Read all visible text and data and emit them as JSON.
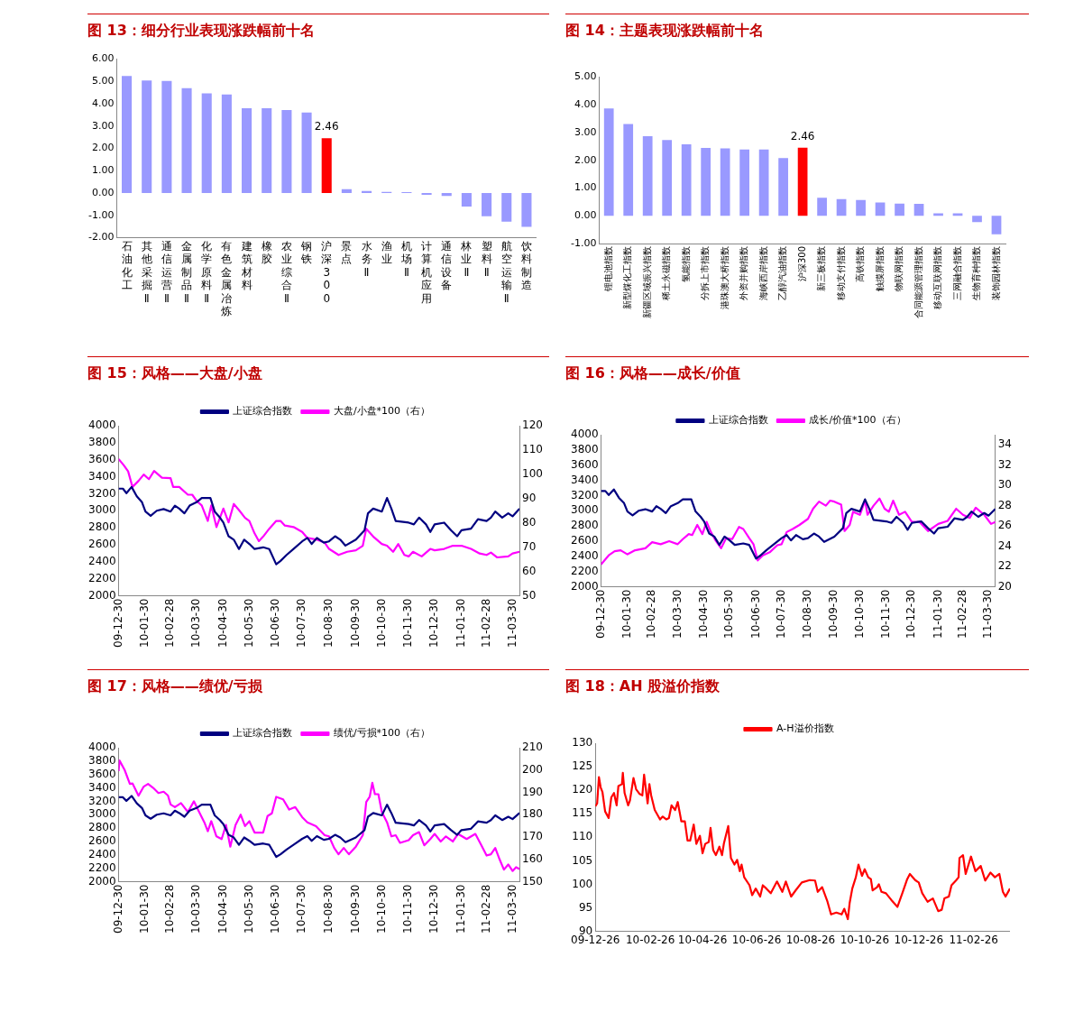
{
  "chart_data": [
    {
      "type": "bar",
      "title": "图 13：细分行业表现涨跌幅前十名",
      "categories": [
        "石油化工",
        "其他采掘Ⅱ",
        "通信运营Ⅱ",
        "金属制品Ⅱ",
        "化学原料Ⅱ",
        "有色金属冶炼",
        "建筑材料",
        "橡胶",
        "农业综合Ⅱ",
        "钢铁",
        "沪深300",
        "景点",
        "水务Ⅱ",
        "渔业",
        "机场Ⅱ",
        "计算机应用",
        "通信设备",
        "林业Ⅱ",
        "塑料Ⅱ",
        "航空运输Ⅱ",
        "饮料制造"
      ],
      "values": [
        5.25,
        5.04,
        5.02,
        4.7,
        4.47,
        4.42,
        3.8,
        3.8,
        3.72,
        3.61,
        2.46,
        0.18,
        0.1,
        0.05,
        0.04,
        -0.08,
        -0.13,
        -0.6,
        -1.04,
        -1.28,
        -1.51
      ],
      "colors": [
        "#9999ff",
        "#9999ff",
        "#9999ff",
        "#9999ff",
        "#9999ff",
        "#9999ff",
        "#9999ff",
        "#9999ff",
        "#9999ff",
        "#9999ff",
        "#ff0000",
        "#9999ff",
        "#9999ff",
        "#9999ff",
        "#9999ff",
        "#9999ff",
        "#9999ff",
        "#9999ff",
        "#9999ff",
        "#9999ff",
        "#9999ff"
      ],
      "value_labels": [
        null,
        null,
        null,
        null,
        null,
        null,
        null,
        null,
        null,
        null,
        "2.46",
        null,
        null,
        null,
        null,
        null,
        null,
        null,
        null,
        null,
        null
      ],
      "ylim": [
        -2,
        6
      ],
      "yticks": [
        {
          "value": -2,
          "label": "-2.00"
        },
        {
          "value": -1,
          "label": "-1.00"
        },
        {
          "value": 0,
          "label": "0.00"
        },
        {
          "value": 1,
          "label": "1.00"
        },
        {
          "value": 2,
          "label": "2.00"
        },
        {
          "value": 3,
          "label": "3.00"
        },
        {
          "value": 4,
          "label": "4.00"
        },
        {
          "value": 5,
          "label": "5.00"
        },
        {
          "value": 6,
          "label": "6.00"
        }
      ]
    },
    {
      "type": "bar",
      "title": "图 14：主题表现涨跌幅前十名",
      "categories": [
        "锂电池指数",
        "新型煤化工指数",
        "新疆区域振兴指数",
        "稀土永磁指数",
        "氢能指数",
        "分拆上市指数",
        "港珠澳大桥指数",
        "外资并购指数",
        "海峡西岸指数",
        "乙醇汽油指数",
        "沪深300",
        "新三板指数",
        "移动支付指数",
        "高铁指数",
        "触摸屏指数",
        "物联网指数",
        "合同能源管理指数",
        "移动互联网指数",
        "三网融合指数",
        "生物育种指数",
        "装饰园林指数"
      ],
      "values": [
        3.87,
        3.31,
        2.87,
        2.73,
        2.58,
        2.45,
        2.43,
        2.39,
        2.39,
        2.08,
        2.46,
        0.65,
        0.6,
        0.57,
        0.48,
        0.44,
        0.43,
        0.09,
        0.09,
        -0.23,
        -0.67
      ],
      "colors": [
        "#9999ff",
        "#9999ff",
        "#9999ff",
        "#9999ff",
        "#9999ff",
        "#9999ff",
        "#9999ff",
        "#9999ff",
        "#9999ff",
        "#9999ff",
        "#ff0000",
        "#9999ff",
        "#9999ff",
        "#9999ff",
        "#9999ff",
        "#9999ff",
        "#9999ff",
        "#9999ff",
        "#9999ff",
        "#9999ff",
        "#9999ff"
      ],
      "value_labels": [
        null,
        null,
        null,
        null,
        null,
        null,
        null,
        null,
        null,
        null,
        "2.46",
        null,
        null,
        null,
        null,
        null,
        null,
        null,
        null,
        null,
        null
      ],
      "ylim": [
        -1,
        5
      ],
      "yticks": [
        {
          "value": -1,
          "label": "-1.00"
        },
        {
          "value": 0,
          "label": "0.00"
        },
        {
          "value": 1,
          "label": "1.00"
        },
        {
          "value": 2,
          "label": "2.00"
        },
        {
          "value": 3,
          "label": "3.00"
        },
        {
          "value": 4,
          "label": "4.00"
        },
        {
          "value": 5,
          "label": "5.00"
        }
      ]
    },
    {
      "type": "line",
      "title": "图 15：风格——大盘/小盘",
      "legend": "top",
      "xlim": [
        "2009-12-30",
        "2011-04-07"
      ],
      "xticks": [
        {
          "value": "2009-12-30",
          "label": "09-12-30"
        },
        {
          "value": "2010-01-30",
          "label": "10-01-30"
        },
        {
          "value": "2010-02-28",
          "label": "10-02-28"
        },
        {
          "value": "2010-03-30",
          "label": "10-03-30"
        },
        {
          "value": "2010-04-30",
          "label": "10-04-30"
        },
        {
          "value": "2010-05-30",
          "label": "10-05-30"
        },
        {
          "value": "2010-06-30",
          "label": "10-06-30"
        },
        {
          "value": "2010-07-30",
          "label": "10-07-30"
        },
        {
          "value": "2010-08-30",
          "label": "10-08-30"
        },
        {
          "value": "2010-09-30",
          "label": "10-09-30"
        },
        {
          "value": "2010-10-30",
          "label": "10-10-30"
        },
        {
          "value": "2010-11-30",
          "label": "10-11-30"
        },
        {
          "value": "2010-12-30",
          "label": "10-12-30"
        },
        {
          "value": "2011-01-30",
          "label": "11-01-30"
        },
        {
          "value": "2011-02-28",
          "label": "11-02-28"
        },
        {
          "value": "2011-03-30",
          "label": "11-03-30"
        }
      ],
      "ylim": [
        2000,
        4000
      ],
      "yticks": [
        2000,
        2200,
        2400,
        2600,
        2800,
        3000,
        3200,
        3400,
        3600,
        3800,
        4000
      ],
      "y2lim": [
        50,
        120
      ],
      "y2ticks": [
        50,
        60,
        70,
        80,
        90,
        100,
        110,
        120
      ],
      "series": [
        {
          "name": "上证综合指数",
          "color": "#000080",
          "x": [
            "2009-12-30",
            "2010-01-04",
            "2010-01-08",
            "2010-01-14",
            "2010-01-20",
            "2010-01-26",
            "2010-01-30",
            "2010-02-05",
            "2010-02-12",
            "2010-02-20",
            "2010-02-28",
            "2010-03-05",
            "2010-03-10",
            "2010-03-16",
            "2010-03-22",
            "2010-03-30",
            "2010-04-05",
            "2010-04-15",
            "2010-04-20",
            "2010-04-26",
            "2010-04-30",
            "2010-05-06",
            "2010-05-12",
            "2010-05-18",
            "2010-05-24",
            "2010-05-30",
            "2010-06-05",
            "2010-06-15",
            "2010-06-22",
            "2010-06-30",
            "2010-07-05",
            "2010-07-12",
            "2010-07-20",
            "2010-07-30",
            "2010-08-05",
            "2010-08-10",
            "2010-08-16",
            "2010-08-24",
            "2010-08-30",
            "2010-09-06",
            "2010-09-12",
            "2010-09-18",
            "2010-09-30",
            "2010-10-10",
            "2010-10-14",
            "2010-10-20",
            "2010-10-30",
            "2010-11-05",
            "2010-11-10",
            "2010-11-15",
            "2010-11-30",
            "2010-12-06",
            "2010-12-12",
            "2010-12-20",
            "2010-12-25",
            "2010-12-30",
            "2011-01-10",
            "2011-01-18",
            "2011-01-25",
            "2011-01-30",
            "2011-02-10",
            "2011-02-18",
            "2011-02-28",
            "2011-03-05",
            "2011-03-10",
            "2011-03-18",
            "2011-03-25",
            "2011-03-30",
            "2011-04-07"
          ],
          "values": [
            3260,
            3260,
            3207,
            3280,
            3170,
            3100,
            2990,
            2940,
            3000,
            3020,
            2990,
            3060,
            3025,
            2970,
            3060,
            3100,
            3150,
            3150,
            2990,
            2920,
            2860,
            2700,
            2660,
            2550,
            2660,
            2610,
            2550,
            2570,
            2550,
            2370,
            2410,
            2480,
            2550,
            2640,
            2680,
            2610,
            2680,
            2625,
            2640,
            2700,
            2660,
            2590,
            2660,
            2770,
            2970,
            3025,
            2990,
            3150,
            3025,
            2880,
            2860,
            2840,
            2920,
            2840,
            2750,
            2840,
            2860,
            2770,
            2700,
            2770,
            2790,
            2900,
            2880,
            2920,
            2990,
            2920,
            2970,
            2935,
            3025
          ]
        },
        {
          "name": "大盘/小盘*100（右）",
          "color": "#ff00ff",
          "axis": "y2",
          "x": [
            "2009-12-30",
            "2010-01-05",
            "2010-01-10",
            "2010-01-15",
            "2010-01-22",
            "2010-01-28",
            "2010-02-03",
            "2010-02-09",
            "2010-02-18",
            "2010-02-28",
            "2010-03-03",
            "2010-03-10",
            "2010-03-20",
            "2010-03-25",
            "2010-03-30",
            "2010-04-05",
            "2010-04-12",
            "2010-04-16",
            "2010-04-22",
            "2010-04-30",
            "2010-05-06",
            "2010-05-12",
            "2010-05-18",
            "2010-05-25",
            "2010-05-30",
            "2010-06-05",
            "2010-06-10",
            "2010-06-15",
            "2010-06-22",
            "2010-06-30",
            "2010-07-05",
            "2010-07-10",
            "2010-07-20",
            "2010-07-30",
            "2010-08-05",
            "2010-08-15",
            "2010-08-25",
            "2010-08-30",
            "2010-09-10",
            "2010-09-20",
            "2010-09-30",
            "2010-10-08",
            "2010-10-12",
            "2010-10-20",
            "2010-10-30",
            "2010-11-05",
            "2010-11-12",
            "2010-11-18",
            "2010-11-25",
            "2010-11-30",
            "2010-12-05",
            "2010-12-15",
            "2010-12-25",
            "2010-12-30",
            "2011-01-10",
            "2011-01-20",
            "2011-01-30",
            "2011-02-10",
            "2011-02-20",
            "2011-02-28",
            "2011-03-05",
            "2011-03-12",
            "2011-03-25",
            "2011-03-30",
            "2011-04-07"
          ],
          "values": [
            106.3,
            103.7,
            101.2,
            94.8,
            97.3,
            99.9,
            98,
            101.4,
            98.6,
            98.4,
            94.8,
            94.8,
            91.6,
            91.6,
            89.1,
            87.2,
            80.8,
            87.2,
            78.3,
            85.9,
            80.2,
            87.8,
            85.3,
            82.1,
            80.8,
            75.7,
            72.5,
            74.4,
            77.6,
            80.8,
            80.8,
            78.9,
            78.3,
            76.3,
            73.8,
            73.2,
            71.9,
            69.3,
            66.8,
            68.1,
            68.7,
            70.6,
            77.6,
            74.4,
            71.3,
            70.6,
            68.1,
            71.3,
            66.8,
            66.2,
            68.1,
            66.2,
            69.3,
            68.7,
            69.3,
            70.6,
            70.6,
            69.3,
            67.4,
            66.8,
            67.8,
            65.8,
            66.2,
            67.4,
            68.1
          ]
        }
      ]
    },
    {
      "type": "line",
      "title": "图 16：风格——成长/价值",
      "legend": "top",
      "xlim": [
        "2009-12-30",
        "2011-04-07"
      ],
      "xticks": [
        {
          "value": "2009-12-30",
          "label": "09-12-30"
        },
        {
          "value": "2010-01-30",
          "label": "10-01-30"
        },
        {
          "value": "2010-02-28",
          "label": "10-02-28"
        },
        {
          "value": "2010-03-30",
          "label": "10-03-30"
        },
        {
          "value": "2010-04-30",
          "label": "10-04-30"
        },
        {
          "value": "2010-05-30",
          "label": "10-05-30"
        },
        {
          "value": "2010-06-30",
          "label": "10-06-30"
        },
        {
          "value": "2010-07-30",
          "label": "10-07-30"
        },
        {
          "value": "2010-08-30",
          "label": "10-08-30"
        },
        {
          "value": "2010-09-30",
          "label": "10-09-30"
        },
        {
          "value": "2010-10-30",
          "label": "10-10-30"
        },
        {
          "value": "2010-11-30",
          "label": "10-11-30"
        },
        {
          "value": "2010-12-30",
          "label": "10-12-30"
        },
        {
          "value": "2011-01-30",
          "label": "11-01-30"
        },
        {
          "value": "2011-02-28",
          "label": "11-02-28"
        },
        {
          "value": "2011-03-30",
          "label": "11-03-30"
        }
      ],
      "ylim": [
        2000,
        4000
      ],
      "yticks": [
        2000,
        2200,
        2400,
        2600,
        2800,
        3000,
        3200,
        3400,
        3600,
        3800,
        4000
      ],
      "y2lim": [
        20,
        35
      ],
      "y2ticks": [
        20,
        22,
        24,
        26,
        28,
        30,
        32,
        34
      ],
      "series": [
        {
          "name": "上证综合指数",
          "color": "#000080",
          "x": [
            "2009-12-30",
            "2010-01-04",
            "2010-01-08",
            "2010-01-14",
            "2010-01-20",
            "2010-01-26",
            "2010-01-30",
            "2010-02-05",
            "2010-02-12",
            "2010-02-20",
            "2010-02-28",
            "2010-03-05",
            "2010-03-10",
            "2010-03-16",
            "2010-03-22",
            "2010-03-30",
            "2010-04-05",
            "2010-04-15",
            "2010-04-20",
            "2010-04-26",
            "2010-04-30",
            "2010-05-06",
            "2010-05-12",
            "2010-05-18",
            "2010-05-24",
            "2010-05-30",
            "2010-06-05",
            "2010-06-15",
            "2010-06-22",
            "2010-06-30",
            "2010-07-05",
            "2010-07-12",
            "2010-07-20",
            "2010-07-30",
            "2010-08-05",
            "2010-08-10",
            "2010-08-16",
            "2010-08-24",
            "2010-08-30",
            "2010-09-06",
            "2010-09-12",
            "2010-09-18",
            "2010-09-30",
            "2010-10-10",
            "2010-10-14",
            "2010-10-20",
            "2010-10-30",
            "2010-11-05",
            "2010-11-10",
            "2010-11-15",
            "2010-11-30",
            "2010-12-06",
            "2010-12-12",
            "2010-12-20",
            "2010-12-25",
            "2010-12-30",
            "2011-01-10",
            "2011-01-18",
            "2011-01-25",
            "2011-01-30",
            "2011-02-10",
            "2011-02-18",
            "2011-02-28",
            "2011-03-05",
            "2011-03-10",
            "2011-03-18",
            "2011-03-25",
            "2011-03-30",
            "2011-04-07"
          ],
          "values": [
            3260,
            3260,
            3207,
            3280,
            3170,
            3100,
            2990,
            2940,
            3000,
            3020,
            2990,
            3060,
            3025,
            2970,
            3060,
            3100,
            3150,
            3150,
            2990,
            2920,
            2860,
            2700,
            2660,
            2550,
            2660,
            2610,
            2550,
            2570,
            2550,
            2370,
            2410,
            2480,
            2550,
            2640,
            2680,
            2610,
            2680,
            2625,
            2640,
            2700,
            2660,
            2590,
            2660,
            2770,
            2970,
            3025,
            2990,
            3150,
            3025,
            2880,
            2860,
            2840,
            2920,
            2840,
            2750,
            2840,
            2860,
            2770,
            2700,
            2770,
            2790,
            2900,
            2880,
            2920,
            2990,
            2920,
            2970,
            2935,
            3025
          ]
        },
        {
          "name": "成长/价值*100（右）",
          "color": "#ff00ff",
          "axis": "y2",
          "x": [
            "2009-12-30",
            "2010-01-08",
            "2010-01-15",
            "2010-01-22",
            "2010-01-30",
            "2010-02-08",
            "2010-02-20",
            "2010-02-28",
            "2010-03-10",
            "2010-03-20",
            "2010-03-30",
            "2010-04-05",
            "2010-04-12",
            "2010-04-16",
            "2010-04-22",
            "2010-04-28",
            "2010-05-03",
            "2010-05-08",
            "2010-05-14",
            "2010-05-20",
            "2010-05-26",
            "2010-06-02",
            "2010-06-10",
            "2010-06-15",
            "2010-06-22",
            "2010-06-27",
            "2010-07-02",
            "2010-07-08",
            "2010-07-16",
            "2010-07-25",
            "2010-07-30",
            "2010-08-05",
            "2010-08-12",
            "2010-08-20",
            "2010-08-30",
            "2010-09-05",
            "2010-09-12",
            "2010-09-20",
            "2010-09-25",
            "2010-09-30",
            "2010-10-08",
            "2010-10-12",
            "2010-10-18",
            "2010-10-22",
            "2010-10-30",
            "2010-11-05",
            "2010-11-08",
            "2010-11-15",
            "2010-11-22",
            "2010-11-28",
            "2010-12-03",
            "2010-12-08",
            "2010-12-15",
            "2010-12-22",
            "2010-12-30",
            "2011-01-08",
            "2011-01-18",
            "2011-01-30",
            "2011-02-10",
            "2011-02-20",
            "2011-02-28",
            "2011-03-08",
            "2011-03-15",
            "2011-03-25",
            "2011-04-02",
            "2011-04-07"
          ],
          "values": [
            22.2,
            23.1,
            23.5,
            23.6,
            23.2,
            23.6,
            23.8,
            24.4,
            24.2,
            24.5,
            24.2,
            24.7,
            25.2,
            25.1,
            26.1,
            25.2,
            26.4,
            25.4,
            24.5,
            23.8,
            24.8,
            24.7,
            25.9,
            25.7,
            24.8,
            24.2,
            22.6,
            23.1,
            23.4,
            24.1,
            24.2,
            25.4,
            25.7,
            26.1,
            26.7,
            27.7,
            28.4,
            28.0,
            28.5,
            28.4,
            28.1,
            25.5,
            26.1,
            27.4,
            27.1,
            28.5,
            27.1,
            28.0,
            28.7,
            27.7,
            27.4,
            28.5,
            27.1,
            27.4,
            26.4,
            26.4,
            25.5,
            26.2,
            26.5,
            27.7,
            27.1,
            26.8,
            27.8,
            27.1,
            26.2,
            26.4
          ]
        }
      ]
    },
    {
      "type": "line",
      "title": "图 17：风格——绩优/亏损",
      "legend": "top",
      "xlim": [
        "2009-12-30",
        "2011-04-07"
      ],
      "xticks": [
        {
          "value": "2009-12-30",
          "label": "09-12-30"
        },
        {
          "value": "2010-01-30",
          "label": "10-01-30"
        },
        {
          "value": "2010-02-28",
          "label": "10-02-28"
        },
        {
          "value": "2010-03-30",
          "label": "10-03-30"
        },
        {
          "value": "2010-04-30",
          "label": "10-04-30"
        },
        {
          "value": "2010-05-30",
          "label": "10-05-30"
        },
        {
          "value": "2010-06-30",
          "label": "10-06-30"
        },
        {
          "value": "2010-07-30",
          "label": "10-07-30"
        },
        {
          "value": "2010-08-30",
          "label": "10-08-30"
        },
        {
          "value": "2010-09-30",
          "label": "10-09-30"
        },
        {
          "value": "2010-10-30",
          "label": "10-10-30"
        },
        {
          "value": "2010-11-30",
          "label": "10-11-30"
        },
        {
          "value": "2010-12-30",
          "label": "10-12-30"
        },
        {
          "value": "2011-01-30",
          "label": "11-01-30"
        },
        {
          "value": "2011-02-28",
          "label": "11-02-28"
        },
        {
          "value": "2011-03-30",
          "label": "11-03-30"
        }
      ],
      "ylim": [
        2000,
        4000
      ],
      "yticks": [
        2000,
        2200,
        2400,
        2600,
        2800,
        3000,
        3200,
        3400,
        3600,
        3800,
        4000
      ],
      "y2lim": [
        150,
        210
      ],
      "y2ticks": [
        150,
        160,
        170,
        180,
        190,
        200,
        210
      ],
      "series": [
        {
          "name": "上证综合指数",
          "color": "#000080",
          "x": [
            "2009-12-30",
            "2010-01-04",
            "2010-01-08",
            "2010-01-14",
            "2010-01-20",
            "2010-01-26",
            "2010-01-30",
            "2010-02-05",
            "2010-02-12",
            "2010-02-20",
            "2010-02-28",
            "2010-03-05",
            "2010-03-10",
            "2010-03-16",
            "2010-03-22",
            "2010-03-30",
            "2010-04-05",
            "2010-04-15",
            "2010-04-20",
            "2010-04-26",
            "2010-04-30",
            "2010-05-06",
            "2010-05-12",
            "2010-05-18",
            "2010-05-24",
            "2010-05-30",
            "2010-06-05",
            "2010-06-15",
            "2010-06-22",
            "2010-06-30",
            "2010-07-05",
            "2010-07-12",
            "2010-07-20",
            "2010-07-30",
            "2010-08-05",
            "2010-08-10",
            "2010-08-16",
            "2010-08-24",
            "2010-08-30",
            "2010-09-06",
            "2010-09-12",
            "2010-09-18",
            "2010-09-30",
            "2010-10-10",
            "2010-10-14",
            "2010-10-20",
            "2010-10-30",
            "2010-11-05",
            "2010-11-10",
            "2010-11-15",
            "2010-11-30",
            "2010-12-06",
            "2010-12-12",
            "2010-12-20",
            "2010-12-25",
            "2010-12-30",
            "2011-01-10",
            "2011-01-18",
            "2011-01-25",
            "2011-01-30",
            "2011-02-10",
            "2011-02-18",
            "2011-02-28",
            "2011-03-05",
            "2011-03-10",
            "2011-03-18",
            "2011-03-25",
            "2011-03-30",
            "2011-04-07"
          ],
          "values": [
            3260,
            3260,
            3207,
            3280,
            3170,
            3100,
            2990,
            2940,
            3000,
            3020,
            2990,
            3060,
            3025,
            2970,
            3060,
            3100,
            3150,
            3150,
            2990,
            2920,
            2860,
            2700,
            2660,
            2550,
            2660,
            2610,
            2550,
            2570,
            2550,
            2370,
            2410,
            2480,
            2550,
            2640,
            2680,
            2610,
            2680,
            2625,
            2640,
            2700,
            2660,
            2590,
            2660,
            2770,
            2970,
            3025,
            2990,
            3150,
            3025,
            2880,
            2860,
            2840,
            2920,
            2840,
            2750,
            2840,
            2860,
            2770,
            2700,
            2770,
            2790,
            2900,
            2880,
            2920,
            2990,
            2920,
            2970,
            2935,
            3025
          ]
        },
        {
          "name": "绩优/亏损*100（右）",
          "color": "#ff00ff",
          "axis": "y2",
          "x": [
            "2009-12-30",
            "2009-12-31",
            "2010-01-06",
            "2010-01-12",
            "2010-01-15",
            "2010-01-22",
            "2010-01-28",
            "2010-02-02",
            "2010-02-08",
            "2010-02-14",
            "2010-02-20",
            "2010-02-25",
            "2010-02-28",
            "2010-03-05",
            "2010-03-12",
            "2010-03-20",
            "2010-03-27",
            "2010-04-02",
            "2010-04-08",
            "2010-04-12",
            "2010-04-16",
            "2010-04-22",
            "2010-04-28",
            "2010-05-03",
            "2010-05-08",
            "2010-05-14",
            "2010-05-20",
            "2010-05-25",
            "2010-05-30",
            "2010-06-05",
            "2010-06-15",
            "2010-06-20",
            "2010-06-25",
            "2010-06-30",
            "2010-07-08",
            "2010-07-15",
            "2010-07-22",
            "2010-07-30",
            "2010-08-05",
            "2010-08-15",
            "2010-08-25",
            "2010-08-30",
            "2010-09-05",
            "2010-09-10",
            "2010-09-16",
            "2010-09-22",
            "2010-09-30",
            "2010-10-08",
            "2010-10-12",
            "2010-10-16",
            "2010-10-19",
            "2010-10-22",
            "2010-10-26",
            "2010-10-30",
            "2010-11-05",
            "2010-11-10",
            "2010-11-15",
            "2010-11-20",
            "2010-11-30",
            "2010-12-05",
            "2010-12-12",
            "2010-12-18",
            "2010-12-25",
            "2010-12-30",
            "2011-01-06",
            "2011-01-12",
            "2011-01-20",
            "2011-01-26",
            "2011-02-05",
            "2011-02-15",
            "2011-02-22",
            "2011-02-28",
            "2011-03-05",
            "2011-03-10",
            "2011-03-15",
            "2011-03-20",
            "2011-03-25",
            "2011-03-30",
            "2011-04-03",
            "2011-04-07"
          ],
          "values": [
            199.5,
            204.3,
            200,
            193.8,
            194,
            188.5,
            192.6,
            193.8,
            192,
            189.7,
            190.3,
            188.6,
            184.6,
            183.4,
            185.2,
            181.2,
            186,
            181.2,
            176.6,
            172.6,
            177.1,
            170.3,
            169.1,
            175.4,
            165.7,
            175.4,
            180,
            174.9,
            177.1,
            172,
            172,
            179.4,
            180.6,
            188,
            186.9,
            182.3,
            183.4,
            178.9,
            176.6,
            174.9,
            170.8,
            170.3,
            165.1,
            162.3,
            165.1,
            162.3,
            165.7,
            170.8,
            185.7,
            188,
            194.3,
            189.2,
            189.2,
            181.2,
            176.6,
            170.3,
            170.8,
            167.4,
            168.6,
            170.8,
            172.2,
            166.3,
            169.1,
            171.4,
            168,
            170.3,
            168,
            171.4,
            169.1,
            171.4,
            166.3,
            161.7,
            162.3,
            165.1,
            160,
            155.4,
            157.7,
            154.8,
            156.5,
            155.7
          ]
        }
      ]
    },
    {
      "type": "line",
      "title": "图 18：AH 股溢价指数",
      "legend": "top",
      "xlim": [
        "2009-12-26",
        "2011-04-08"
      ],
      "xticks": [
        {
          "value": "2009-12-26",
          "label": "09-12-26"
        },
        {
          "value": "2010-02-26",
          "label": "10-02-26"
        },
        {
          "value": "2010-04-26",
          "label": "10-04-26"
        },
        {
          "value": "2010-06-26",
          "label": "10-06-26"
        },
        {
          "value": "2010-08-26",
          "label": "10-08-26"
        },
        {
          "value": "2010-10-26",
          "label": "10-10-26"
        },
        {
          "value": "2010-12-26",
          "label": "10-12-26"
        },
        {
          "value": "2011-02-26",
          "label": "11-02-26"
        }
      ],
      "ylim": [
        90,
        130
      ],
      "yticks": [
        90,
        95,
        100,
        105,
        110,
        115,
        120,
        125,
        130
      ],
      "series": [
        {
          "name": "A-H溢价指数",
          "color": "#ff0000",
          "x": [
            "2009-12-26",
            "2009-12-28",
            "2009-12-30",
            "2010-01-01",
            "2010-01-03",
            "2010-01-06",
            "2010-01-10",
            "2010-01-13",
            "2010-01-16",
            "2010-01-19",
            "2010-01-21",
            "2010-01-25",
            "2010-01-26",
            "2010-01-28",
            "2010-02-01",
            "2010-02-03",
            "2010-02-07",
            "2010-02-10",
            "2010-02-14",
            "2010-02-17",
            "2010-02-19",
            "2010-02-23",
            "2010-02-25",
            "2010-02-27",
            "2010-03-03",
            "2010-03-09",
            "2010-03-12",
            "2010-03-16",
            "2010-03-19",
            "2010-03-22",
            "2010-03-26",
            "2010-03-29",
            "2010-04-02",
            "2010-04-06",
            "2010-04-09",
            "2010-04-12",
            "2010-04-16",
            "2010-04-19",
            "2010-04-23",
            "2010-04-26",
            "2010-04-29",
            "2010-05-03",
            "2010-05-05",
            "2010-05-08",
            "2010-05-11",
            "2010-05-15",
            "2010-05-18",
            "2010-05-20",
            "2010-05-25",
            "2010-05-28",
            "2010-06-01",
            "2010-06-04",
            "2010-06-07",
            "2010-06-09",
            "2010-06-12",
            "2010-06-18",
            "2010-06-21",
            "2010-06-25",
            "2010-06-30",
            "2010-07-03",
            "2010-07-07",
            "2010-07-12",
            "2010-07-19",
            "2010-07-25",
            "2010-07-29",
            "2010-08-04",
            "2010-08-09",
            "2010-08-16",
            "2010-08-25",
            "2010-08-31",
            "2010-09-03",
            "2010-09-08",
            "2010-09-14",
            "2010-09-18",
            "2010-09-24",
            "2010-09-30",
            "2010-10-03",
            "2010-10-07",
            "2010-10-09",
            "2010-10-12",
            "2010-10-16",
            "2010-10-19",
            "2010-10-23",
            "2010-10-26",
            "2010-10-30",
            "2010-11-02",
            "2010-11-04",
            "2010-11-09",
            "2010-11-11",
            "2010-11-14",
            "2010-11-19",
            "2010-11-25",
            "2010-12-02",
            "2010-12-08",
            "2010-12-13",
            "2010-12-16",
            "2010-12-22",
            "2010-12-26",
            "2010-12-30",
            "2011-01-05",
            "2011-01-11",
            "2011-01-17",
            "2011-01-21",
            "2011-01-24",
            "2011-01-29",
            "2011-02-01",
            "2011-02-06",
            "2011-02-09",
            "2011-02-10",
            "2011-02-14",
            "2011-02-17",
            "2011-02-23",
            "2011-02-28",
            "2011-03-06",
            "2011-03-11",
            "2011-03-17",
            "2011-03-22",
            "2011-03-27",
            "2011-03-31",
            "2011-04-03",
            "2011-04-08"
          ],
          "values": [
            116.6,
            117.2,
            122.8,
            120.6,
            119.6,
            115.5,
            114.1,
            118.5,
            119.4,
            116.8,
            120.9,
            121.3,
            123.7,
            119.4,
            116.8,
            117.8,
            122.6,
            120.2,
            119.2,
            118.9,
            123.3,
            117.2,
            121.3,
            118.9,
            115.8,
            113.8,
            114.4,
            113.8,
            114.1,
            116.8,
            115.8,
            117.5,
            113.4,
            113.4,
            109.3,
            109.3,
            112.7,
            108.6,
            110.3,
            106.6,
            108.6,
            109,
            112,
            107.3,
            106.2,
            108,
            106.2,
            108.6,
            112.4,
            105.6,
            104.2,
            105.2,
            102.8,
            104.2,
            101.5,
            99.8,
            97.7,
            99.1,
            97.4,
            99.8,
            99.1,
            98.1,
            100.6,
            98.4,
            100.6,
            97.4,
            98.7,
            100.4,
            100.9,
            100.8,
            98.4,
            99.4,
            96.3,
            93.6,
            94,
            93.6,
            94.8,
            92.6,
            96,
            99.1,
            101.5,
            104.2,
            101.8,
            103.2,
            101.5,
            101.1,
            98.7,
            99.4,
            100,
            98.4,
            98.1,
            96.7,
            95.2,
            98.4,
            101.1,
            102.2,
            100.9,
            100.4,
            98.1,
            96.3,
            97,
            94.3,
            94.6,
            97,
            97.4,
            99.8,
            100.8,
            101.5,
            105.6,
            106.2,
            102.2,
            105.9,
            102.8,
            103.9,
            100.8,
            102.5,
            101.5,
            102.2,
            98.4,
            97.4,
            99.1
          ]
        }
      ]
    }
  ]
}
